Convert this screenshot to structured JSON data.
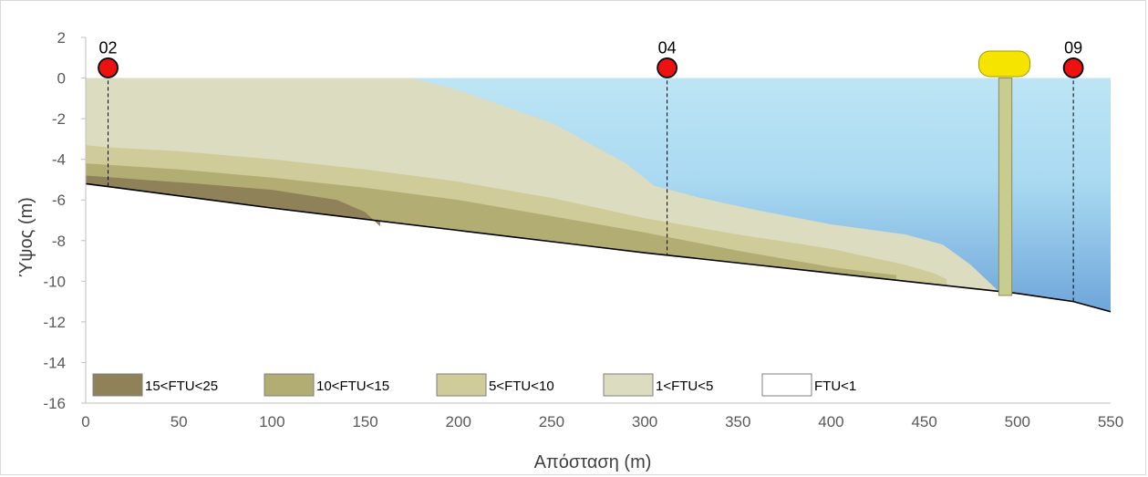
{
  "chart_data": {
    "type": "area",
    "xlabel": "Απόσταση (m)",
    "ylabel": "Ύψος (m)",
    "xlim": [
      0,
      550
    ],
    "ylim": [
      -16,
      2
    ],
    "x_ticks": [
      "0",
      "50",
      "100",
      "150",
      "200",
      "250",
      "300",
      "350",
      "400",
      "450",
      "500",
      "550"
    ],
    "y_ticks": [
      "2",
      "0",
      "-2",
      "-4",
      "-6",
      "-8",
      "-10",
      "-12",
      "-14",
      "-16"
    ],
    "grid": false,
    "legend_position": "bottom-left inside plot",
    "water_level_m": 0,
    "seabed": {
      "x": [
        0,
        100,
        200,
        300,
        400,
        500,
        530,
        550
      ],
      "y": [
        -5.2,
        -6.4,
        -7.5,
        -8.6,
        -9.6,
        -10.6,
        -11.0,
        -11.5
      ]
    },
    "stations": [
      {
        "label": "02",
        "x": 12,
        "top": 0.5,
        "bottom": -5.4
      },
      {
        "label": "04",
        "x": 312,
        "top": 0.5,
        "bottom": -8.7
      },
      {
        "label": "09",
        "x": 530,
        "top": 0.5,
        "bottom": -11.0
      }
    ],
    "outfall": {
      "x_left": 490,
      "x_right": 497,
      "top": 0.0,
      "bottom": -10.7,
      "buoy_x": 493,
      "buoy_y": 0.7
    },
    "series": [
      {
        "name": "1<FTU<5",
        "color": "#dcdcc1",
        "upper": {
          "x": [
            0,
            175,
            200,
            250,
            290,
            305,
            330,
            360,
            400,
            440,
            460,
            475,
            490
          ],
          "y": [
            0,
            0,
            -0.6,
            -2.2,
            -4.2,
            -5.3,
            -5.9,
            -6.5,
            -7.2,
            -7.7,
            -8.2,
            -9.2,
            -10.5
          ]
        }
      },
      {
        "name": "5<FTU<10",
        "color": "#cfcc9a",
        "upper": {
          "x": [
            0,
            10,
            50,
            100,
            150,
            200,
            250,
            300,
            350,
            400,
            440,
            455,
            462
          ],
          "y": [
            -3.3,
            -3.4,
            -3.6,
            -4.0,
            -4.5,
            -5.1,
            -5.9,
            -6.9,
            -7.7,
            -8.4,
            -9.2,
            -9.6,
            -9.9
          ]
        }
      },
      {
        "name": "10<FTU<15",
        "color": "#b2ad73",
        "upper": {
          "x": [
            0,
            50,
            100,
            150,
            200,
            250,
            300,
            350,
            400,
            425,
            435
          ],
          "y": [
            -4.2,
            -4.5,
            -4.9,
            -5.4,
            -6.0,
            -6.8,
            -7.6,
            -8.5,
            -9.3,
            -9.6,
            -9.7
          ]
        }
      },
      {
        "name": "15<FTU<25",
        "color": "#8f8158",
        "upper": {
          "x": [
            0,
            30,
            60,
            100,
            135,
            150,
            158
          ],
          "y": [
            -4.8,
            -5.0,
            -5.2,
            -5.5,
            -6.0,
            -6.6,
            -7.3
          ]
        }
      },
      {
        "name": "FTU<1",
        "color": "#ffffff"
      }
    ],
    "colors": {
      "water_top": "#bde5f5",
      "water_bottom": "#6ea6da",
      "station_marker": "#ee1111",
      "buoy": "#f5e400",
      "outfall": "#c8cc8f"
    }
  }
}
